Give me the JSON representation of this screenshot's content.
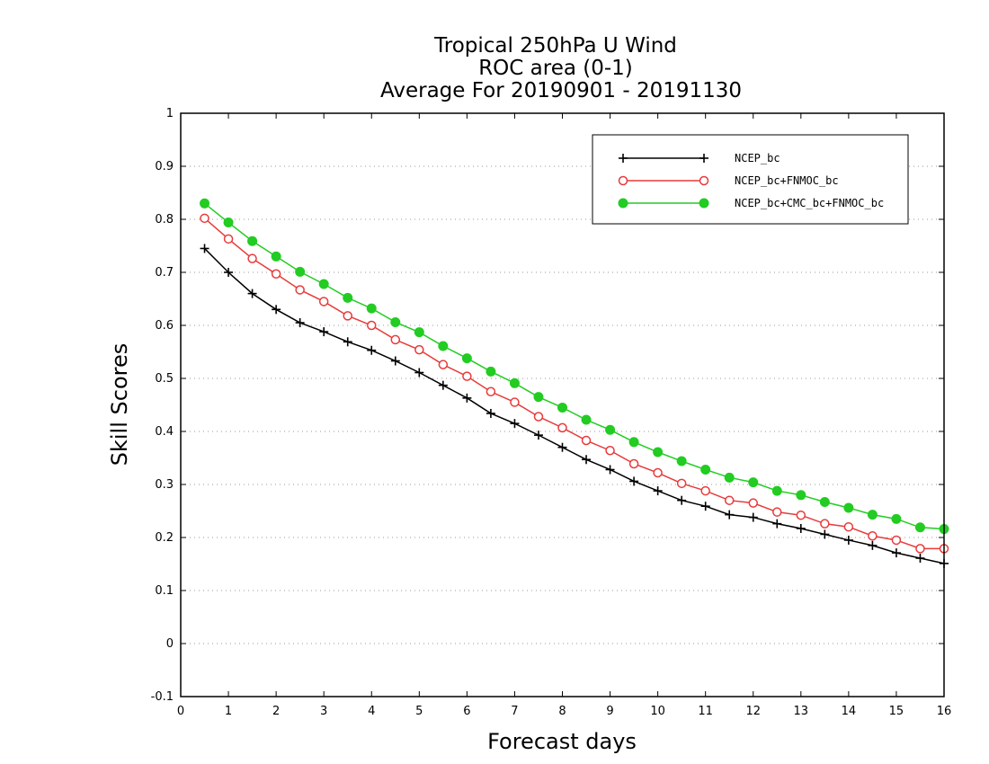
{
  "chart_data": {
    "type": "line",
    "title": [
      "Tropical 250hPa U Wind",
      "ROC area (0-1)",
      "Average For 20190901 - 20191130"
    ],
    "xlabel": "Forecast days",
    "ylabel": "Skill Scores",
    "xlim": [
      0,
      16
    ],
    "ylim": [
      -0.1,
      1
    ],
    "xticks": [
      "0",
      "1",
      "2",
      "3",
      "4",
      "5",
      "6",
      "7",
      "8",
      "9",
      "10",
      "11",
      "12",
      "13",
      "14",
      "15",
      "16"
    ],
    "yticks": [
      "-0.1",
      "0",
      "0.1",
      "0.2",
      "0.3",
      "0.4",
      "0.5",
      "0.6",
      "0.7",
      "0.8",
      "0.9",
      "1"
    ],
    "grid": true,
    "legend_position": "top-right",
    "x": [
      0.5,
      1,
      1.5,
      2,
      2.5,
      3,
      3.5,
      4,
      4.5,
      5,
      5.5,
      6,
      6.5,
      7,
      7.5,
      8,
      8.5,
      9,
      9.5,
      10,
      10.5,
      11,
      11.5,
      12,
      12.5,
      13,
      13.5,
      14,
      14.5,
      15,
      15.5,
      16
    ],
    "series": [
      {
        "name": "NCEP_bc",
        "color": "#000000",
        "marker": "plus",
        "values": [
          0.745,
          0.7,
          0.66,
          0.63,
          0.605,
          0.588,
          0.569,
          0.553,
          0.533,
          0.511,
          0.487,
          0.463,
          0.434,
          0.415,
          0.393,
          0.37,
          0.347,
          0.328,
          0.306,
          0.288,
          0.27,
          0.259,
          0.243,
          0.238,
          0.226,
          0.217,
          0.206,
          0.195,
          0.185,
          0.171,
          0.161,
          0.151
        ]
      },
      {
        "name": "NCEP_bc+FNMOC_bc",
        "color": "#e83a3a",
        "marker": "open-circle",
        "values": [
          0.802,
          0.763,
          0.726,
          0.697,
          0.667,
          0.645,
          0.618,
          0.6,
          0.573,
          0.554,
          0.526,
          0.504,
          0.475,
          0.455,
          0.428,
          0.407,
          0.383,
          0.364,
          0.339,
          0.322,
          0.302,
          0.288,
          0.27,
          0.265,
          0.248,
          0.242,
          0.226,
          0.22,
          0.203,
          0.195,
          0.179,
          0.179
        ]
      },
      {
        "name": "NCEP_bc+CMC_bc+FNMOC_bc",
        "color": "#22cc22",
        "marker": "filled-circle",
        "values": [
          0.83,
          0.794,
          0.759,
          0.73,
          0.701,
          0.678,
          0.652,
          0.632,
          0.606,
          0.587,
          0.561,
          0.538,
          0.513,
          0.491,
          0.465,
          0.445,
          0.422,
          0.403,
          0.38,
          0.361,
          0.344,
          0.328,
          0.313,
          0.304,
          0.288,
          0.28,
          0.267,
          0.256,
          0.243,
          0.235,
          0.219,
          0.216
        ]
      }
    ]
  }
}
